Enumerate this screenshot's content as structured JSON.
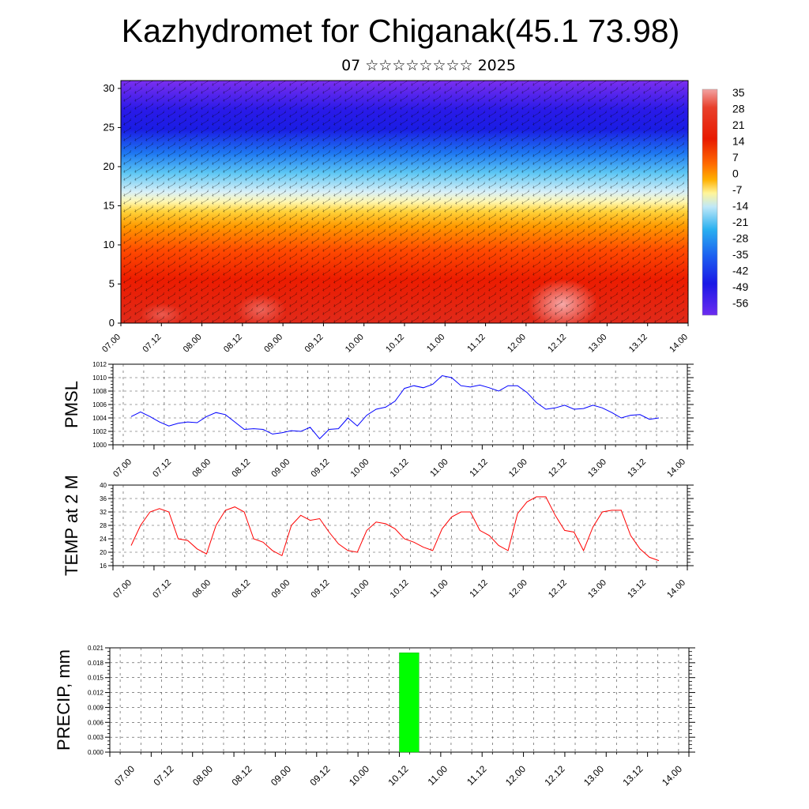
{
  "page": {
    "title": "Kazhydromet for Chiganak(45.1 73.98)",
    "subtitle": "07 ☆☆☆☆☆☆☆☆ 2025"
  },
  "colors": {
    "pmsl_line": "#0000ff",
    "temp_line": "#ff0000",
    "precip_bar": "#00ff00",
    "colorbar_stops": [
      "#f2a3a3",
      "#e83a2a",
      "#e81a00",
      "#ff6a00",
      "#ffb000",
      "#fff59a",
      "#bfe8f8",
      "#2ab0f0",
      "#1c5ef0",
      "#1a18e6",
      "#6c2cf0"
    ]
  },
  "x_tick_labels": [
    "07.00",
    "07.12",
    "08.00",
    "08.12",
    "09.00",
    "09.12",
    "10.00",
    "10.12",
    "11.00",
    "11.12",
    "12.00",
    "12.12",
    "13.00",
    "13.12",
    "14.00"
  ],
  "chart_data": [
    {
      "type": "heatmap",
      "id": "upper-air",
      "x_range": [
        0,
        14
      ],
      "y_ticks": [
        0,
        5,
        10,
        15,
        20,
        25,
        30
      ],
      "ylim": [
        0,
        31
      ],
      "colorbar_labels": [
        "35",
        "28",
        "21",
        "14",
        "7",
        "0",
        "-7",
        "-14",
        "-21",
        "-28",
        "-35",
        "-42",
        "-49",
        "-56"
      ],
      "grid": false
    },
    {
      "type": "line",
      "id": "pmsl",
      "ylabel": "PMSL",
      "ylim": [
        1000,
        1012
      ],
      "y_ticks": [
        "1000",
        "1002",
        "1004",
        "1006",
        "1008",
        "1010",
        "1012"
      ],
      "x_step": 0.25,
      "x_start": 0,
      "series": [
        {
          "values": [
            1004.2,
            1004.9,
            1004.2,
            1003.4,
            1002.8,
            1003.2,
            1003.4,
            1003.3,
            1004.2,
            1004.8,
            1004.5,
            1003.4,
            1002.3,
            1002.4,
            1002.3,
            1001.6,
            1001.8,
            1002.1,
            1002.0,
            1002.6,
            1000.9,
            1002.3,
            1002.4,
            1004.0,
            1002.8,
            1004.4,
            1005.3,
            1005.6,
            1006.5,
            1008.4,
            1008.8,
            1008.5,
            1009.0,
            1010.3,
            1010.0,
            1008.8,
            1008.6,
            1008.9,
            1008.5,
            1008.0,
            1008.8,
            1008.8,
            1007.8,
            1006.3,
            1005.3,
            1005.5,
            1005.9,
            1005.3,
            1005.4,
            1005.9,
            1005.5,
            1004.8,
            1004.0,
            1004.4,
            1004.5,
            1003.8,
            1004.0
          ]
        }
      ],
      "grid": true
    },
    {
      "type": "line",
      "id": "temp",
      "ylabel": "TEMP at 2 M",
      "ylim": [
        16,
        40
      ],
      "y_ticks": [
        "16",
        "20",
        "24",
        "28",
        "32",
        "36",
        "40"
      ],
      "x_step": 0.25,
      "x_start": 0,
      "series": [
        {
          "values": [
            22,
            28,
            32,
            33,
            32,
            24,
            23.5,
            21,
            19.5,
            28,
            32.5,
            33.5,
            32,
            24,
            23,
            20.5,
            19,
            28,
            31,
            29.5,
            30,
            26,
            22.5,
            20.5,
            20,
            26.5,
            29,
            28.5,
            27,
            24,
            23,
            21.5,
            20.5,
            27,
            30.5,
            32,
            32,
            26.5,
            25,
            22,
            20.5,
            31.5,
            35,
            36.5,
            36.5,
            31,
            26.5,
            26,
            20.5,
            27.5,
            32,
            32.5,
            32.5,
            25,
            21,
            18.5,
            17.5
          ]
        }
      ],
      "grid": true
    },
    {
      "type": "bar",
      "id": "precip",
      "ylabel": "PRECIP, mm",
      "ylim": [
        0,
        0.021
      ],
      "y_ticks": [
        "0.000",
        "0.003",
        "0.006",
        "0.009",
        "0.012",
        "0.015",
        "0.018",
        "0.021"
      ],
      "bars": [
        {
          "x_start": 7.0,
          "x_end": 7.5,
          "value": 0.02
        }
      ],
      "grid": true
    }
  ]
}
